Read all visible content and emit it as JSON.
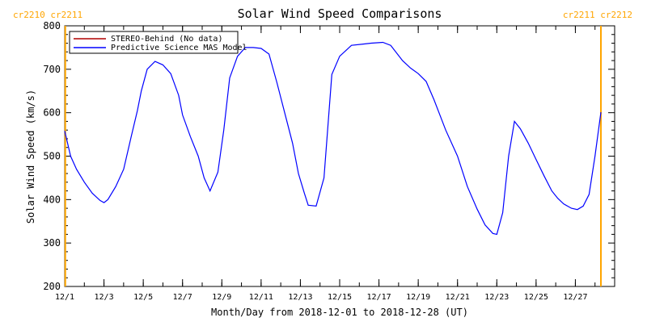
{
  "chart_data": {
    "type": "line",
    "title": "Solar Wind Speed Comparisons",
    "xlabel": "Month/Day from 2018-12-01 to 2018-12-28 (UT)",
    "ylabel": "Solar Wind Speed (km/s)",
    "xlim": [
      0,
      28
    ],
    "ylim": [
      200,
      800
    ],
    "x_ticks": [
      {
        "x": 0,
        "label": "12/1"
      },
      {
        "x": 2,
        "label": "12/3"
      },
      {
        "x": 4,
        "label": "12/5"
      },
      {
        "x": 6,
        "label": "12/7"
      },
      {
        "x": 8,
        "label": "12/9"
      },
      {
        "x": 10,
        "label": "12/11"
      },
      {
        "x": 12,
        "label": "12/13"
      },
      {
        "x": 14,
        "label": "12/15"
      },
      {
        "x": 16,
        "label": "12/17"
      },
      {
        "x": 18,
        "label": "12/19"
      },
      {
        "x": 20,
        "label": "12/21"
      },
      {
        "x": 22,
        "label": "12/23"
      },
      {
        "x": 24,
        "label": "12/25"
      },
      {
        "x": 26,
        "label": "12/27"
      }
    ],
    "y_ticks": [
      200,
      300,
      400,
      500,
      600,
      700,
      800
    ],
    "legend": {
      "placement": "top-left",
      "entries": [
        {
          "label": "STEREO-Behind (No data)",
          "color": "#b00000"
        },
        {
          "label": "Predictive Science MAS Model",
          "color": "#0000ff"
        }
      ]
    },
    "carrington": {
      "color": "#ffa500",
      "markers": [
        {
          "x": 0.03,
          "labels": [
            "cr2210",
            "cr2211"
          ],
          "side": "left"
        },
        {
          "x": 27.3,
          "labels": [
            "cr2211",
            "cr2212"
          ],
          "side": "right"
        }
      ]
    },
    "series": [
      {
        "name": "Predictive Science MAS Model",
        "color": "#0000ff",
        "x": [
          0,
          0.3,
          0.6,
          1.0,
          1.4,
          1.8,
          2.0,
          2.2,
          2.6,
          3.0,
          3.4,
          3.7,
          3.9,
          4.2,
          4.6,
          5.0,
          5.4,
          5.8,
          6.0,
          6.4,
          6.8,
          7.1,
          7.4,
          7.8,
          8.1,
          8.4,
          8.8,
          9.2,
          9.6,
          10.0,
          10.4,
          10.8,
          11.2,
          11.6,
          11.9,
          12.2,
          12.4,
          12.8,
          13.2,
          13.6,
          14.0,
          14.6,
          15.2,
          15.6,
          16.2,
          16.6,
          17.2,
          17.6,
          18.0,
          18.4,
          18.8,
          19.4,
          20.0,
          20.5,
          21.0,
          21.4,
          21.8,
          22.0,
          22.3,
          22.6,
          22.9,
          23.2,
          23.6,
          24.0,
          24.4,
          24.8,
          25.1,
          25.4,
          25.8,
          26.1,
          26.4,
          26.7,
          27.0,
          27.3
        ],
        "y": [
          558,
          500,
          470,
          440,
          415,
          398,
          393,
          400,
          430,
          470,
          548,
          605,
          650,
          700,
          718,
          710,
          690,
          640,
          595,
          545,
          500,
          450,
          420,
          463,
          560,
          680,
          730,
          750,
          750,
          748,
          735,
          670,
          600,
          530,
          460,
          415,
          387,
          385,
          450,
          688,
          730,
          755,
          758,
          760,
          762,
          755,
          720,
          703,
          690,
          672,
          630,
          560,
          500,
          430,
          378,
          342,
          322,
          320,
          370,
          500,
          580,
          563,
          530,
          492,
          455,
          420,
          403,
          390,
          380,
          377,
          385,
          412,
          500,
          601
        ]
      }
    ]
  }
}
